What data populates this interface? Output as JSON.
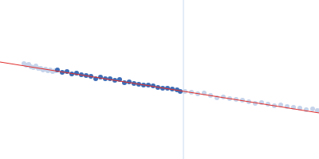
{
  "chart_data": {
    "type": "scatter",
    "xlim": [
      0,
      400
    ],
    "ylim": [
      0,
      200
    ],
    "grid": false,
    "tick_labels": false,
    "series": [
      {
        "type": "line",
        "color": "#c8d8f0",
        "line_style": "solid",
        "x": [
          230,
          230
        ],
        "values": [
          0,
          200
        ]
      },
      {
        "type": "scatter",
        "color": "#c5d3ea",
        "marker": "circle",
        "x": [
          30,
          33,
          36,
          39,
          42,
          45,
          48,
          51,
          54,
          57,
          60,
          63,
          66,
          69
        ],
        "values": [
          120,
          118,
          119,
          116,
          115,
          117,
          114,
          114,
          112,
          113,
          111,
          112,
          110,
          111
        ]
      },
      {
        "type": "scatter",
        "color": "#3d6cb5",
        "marker": "circle",
        "x": [
          72,
          78,
          84,
          90,
          96,
          102,
          108,
          114,
          120,
          126,
          132,
          138,
          144,
          150,
          156,
          162,
          168,
          174,
          180,
          186,
          192,
          198,
          204,
          210,
          216,
          222,
          226
        ],
        "values": [
          112,
          109,
          110,
          107,
          108,
          106,
          105,
          104,
          101,
          103,
          101,
          101,
          99,
          100,
          96,
          97,
          95,
          94,
          93,
          93,
          92,
          90,
          89,
          89,
          88,
          87,
          85
        ]
      },
      {
        "type": "scatter",
        "color": "#c5d3ea",
        "marker": "circle",
        "x": [
          232,
          240,
          248,
          256,
          264,
          272,
          280,
          288,
          296,
          304,
          312,
          320,
          328,
          336,
          344,
          352,
          360,
          368,
          376,
          384,
          392,
          398
        ],
        "values": [
          85,
          84,
          82,
          83,
          80,
          77,
          78,
          76,
          75,
          74,
          72,
          70,
          71,
          69,
          67,
          68,
          66,
          65,
          64,
          62,
          63,
          61
        ]
      },
      {
        "type": "line",
        "color": "#e0302e",
        "line_style": "solid",
        "x": [
          0,
          400
        ],
        "values": [
          122,
          58
        ]
      }
    ]
  }
}
